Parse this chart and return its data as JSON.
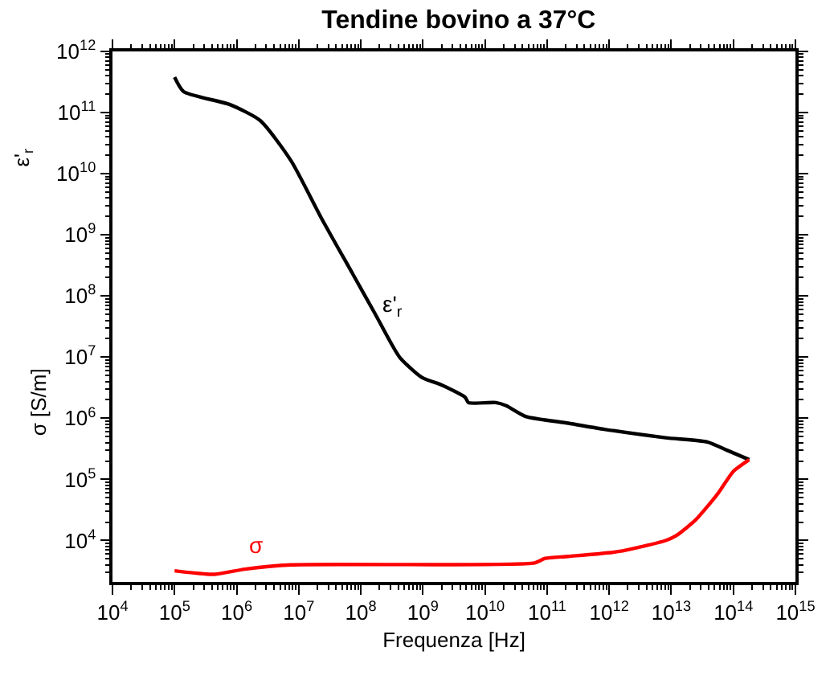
{
  "chart_data": {
    "type": "line",
    "title": "Tendine bovino a 37°C",
    "xlabel": "Frequenza [Hz]",
    "ylabel": "σ [S/m]",
    "log": "xy",
    "marker": "none",
    "line_style": "solid",
    "xlim": [
      10000.0,
      1000000000000000.0
    ],
    "ylim": [
      2100,
      1000000000000.0
    ],
    "xticks": [
      {
        "value": 10000.0,
        "label": "10$^{4}$"
      },
      {
        "value": 100000.0,
        "label": "10$^{5}$"
      },
      {
        "value": 1000000.0,
        "label": "10$^{6}$"
      },
      {
        "value": 10000000.0,
        "label": "10$^{7}$"
      },
      {
        "value": 100000000.0,
        "label": "10$^{8}$"
      },
      {
        "value": 1000000000.0,
        "label": "10$^{9}$"
      },
      {
        "value": 10000000000.0,
        "label": "10$^{10}$"
      },
      {
        "value": 100000000000.0,
        "label": "10$^{11}$"
      },
      {
        "value": 1000000000000.0,
        "label": "10$^{12}$"
      },
      {
        "value": 10000000000000.0,
        "label": "10$^{13}$"
      },
      {
        "value": 100000000000000.0,
        "label": "10$^{14}$"
      },
      {
        "value": 1000000000000000.0,
        "label": "10$^{15}$"
      }
    ],
    "yticks": [
      {
        "value": 10000.0,
        "label": "10$^{4}$"
      },
      {
        "value": 100000.0,
        "label": "10$^{5}$"
      },
      {
        "value": 1000000.0,
        "label": "10$^{6}$"
      },
      {
        "value": 10000000.0,
        "label": "10$^{7}$"
      },
      {
        "value": 100000000.0,
        "label": "10$^{8}$"
      },
      {
        "value": 1000000000.0,
        "label": "10$^{9}$"
      },
      {
        "value": 10000000000.0,
        "label": "10$^{10}$"
      },
      {
        "value": 100000000000.0,
        "label": "10$^{11}$"
      },
      {
        "value": 1000000000000.0,
        "label": "10$^{12}$"
      }
    ],
    "series": [
      {
        "color": "#000000",
        "x": [
          100000.0,
          140000.0,
          780000.0,
          2400000.0,
          7600000.0,
          23000000.0,
          74000000.0,
          170000000.0,
          420000000.0,
          980000000.0,
          2000000000.0,
          4800000000.0,
          5400000000.0,
          15000000000.0,
          22000000000.0,
          45000000000.0,
          220000000000.0,
          830000000000.0,
          8100000000000.0,
          38000000000000.0,
          79000000000000.0,
          180000000000000.0
        ],
        "values": [
          380000000000.0,
          220000000000.0,
          135000000000.0,
          74000000000.0,
          16000000000.0,
          1900000000.0,
          230000000.0,
          51000000.0,
          10000000.0,
          4600000.0,
          3500000.0,
          2200000.0,
          1800000.0,
          1800000.0,
          1600000.0,
          1070000.0,
          830000.0,
          660000.0,
          480000.0,
          410000.0,
          300000.0,
          210000.0
        ]
      },
      {
        "color": "#ff0000",
        "x": [
          100000.0,
          440000.0,
          1350000.0,
          7600000.0,
          63000000000.0,
          93000000000.0,
          220000000000.0,
          1400000000000.0,
          8100000000000.0,
          12000000000000.0,
          25000000000000.0,
          56000000000000.0,
          100000000000000.0,
          180000000000000.0
        ],
        "values": [
          3200,
          2800,
          3400,
          4000,
          4300,
          5100,
          5500,
          6600,
          10000,
          12000,
          22000,
          58000,
          135000,
          210000.0
        ]
      }
    ],
    "annotations": [
      "ε'$_{r}$",
      "σ",
      "ε'$_{r}$"
    ]
  }
}
